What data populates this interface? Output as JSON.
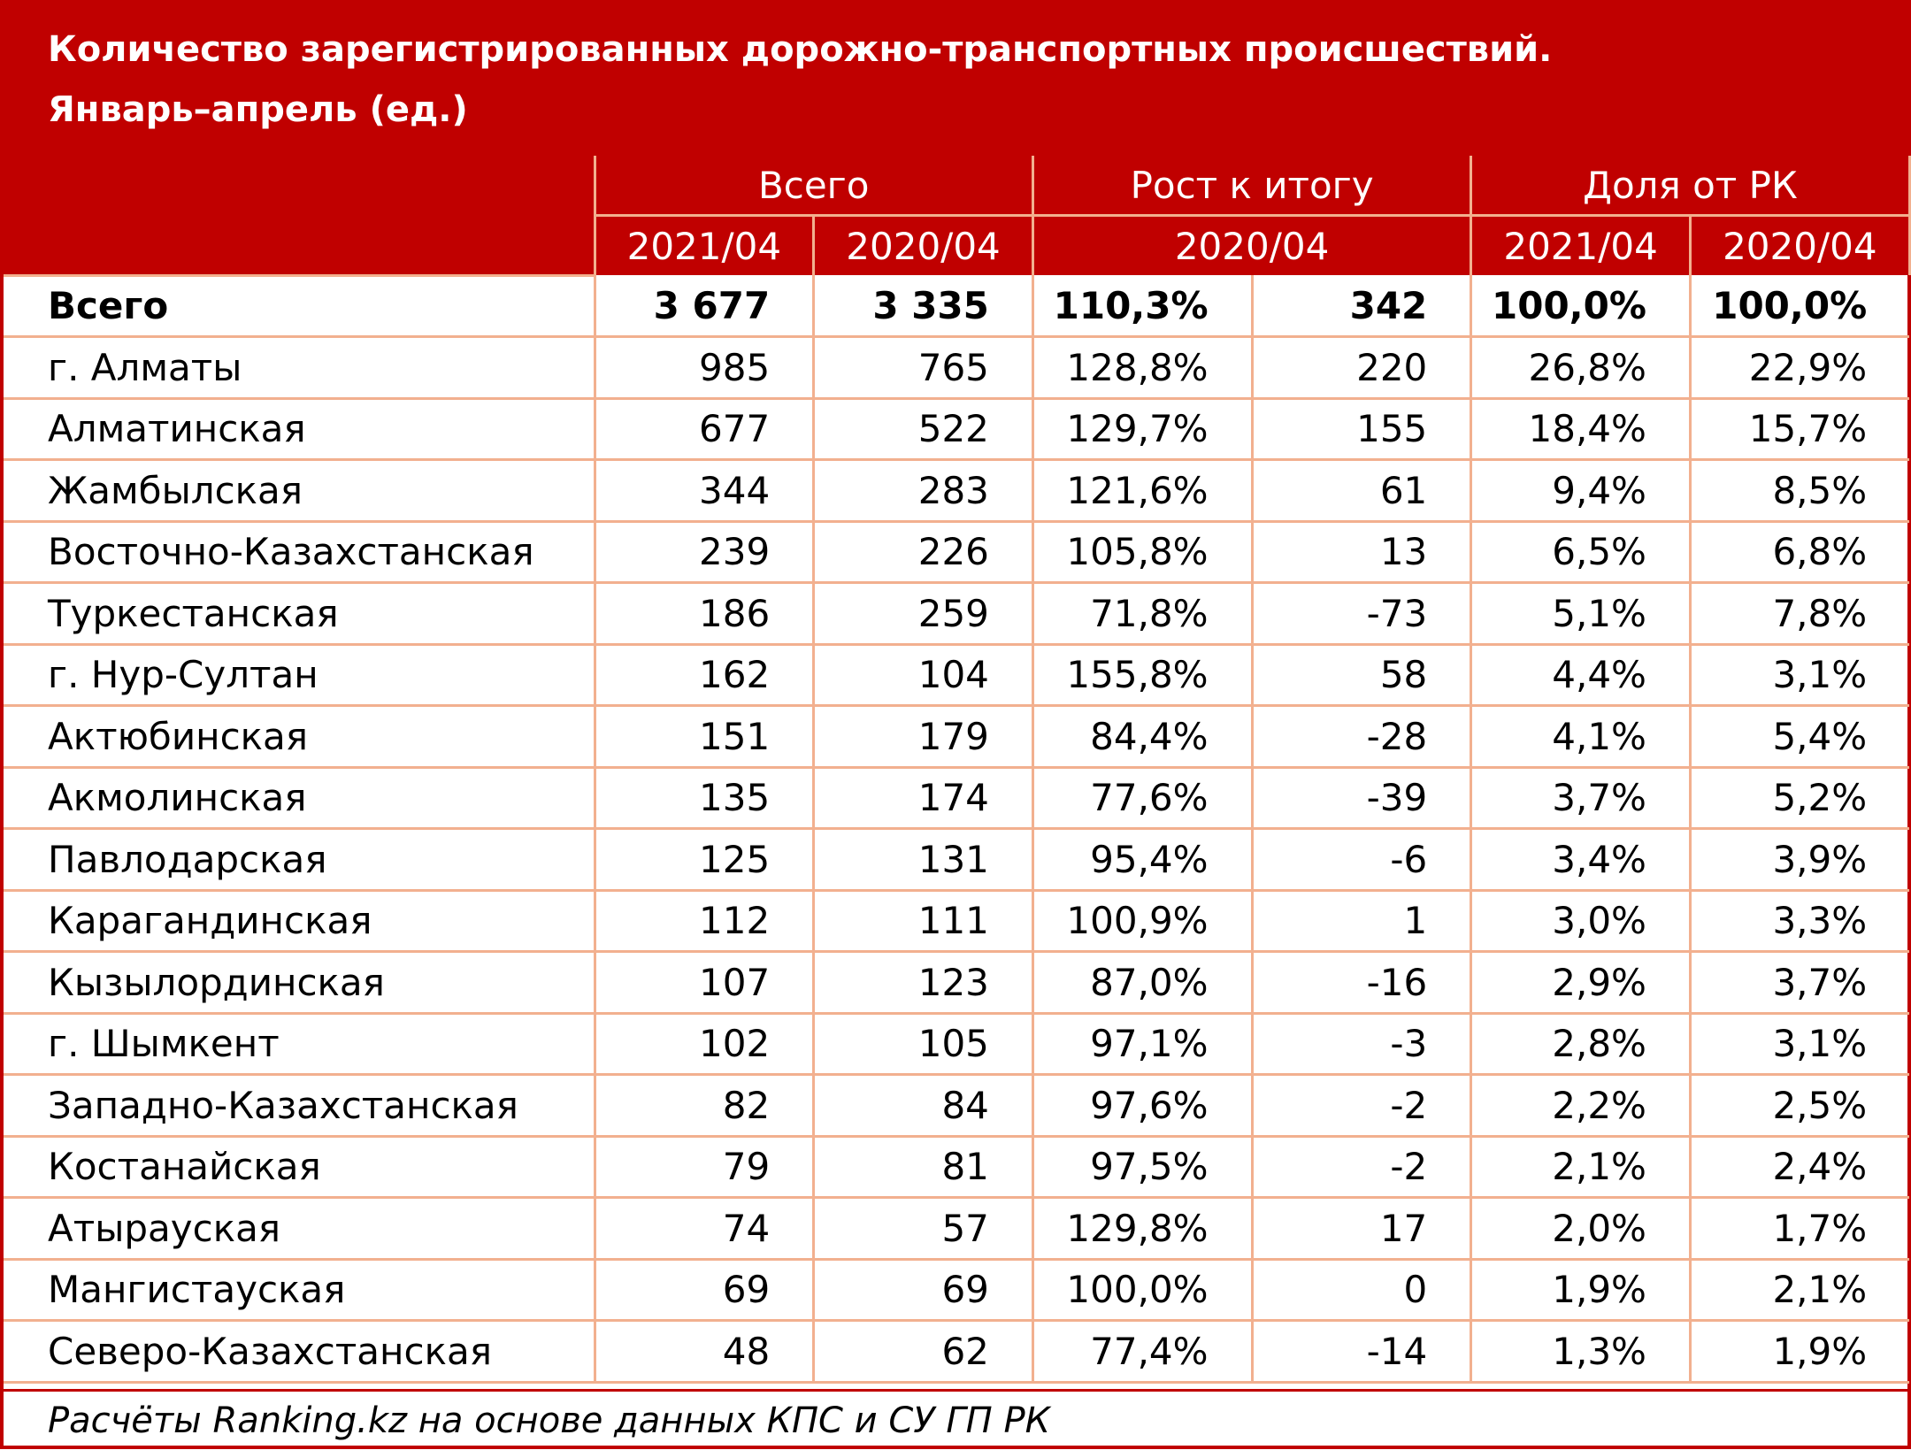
{
  "title": {
    "line1": "Количество зарегистрированных дорожно-транспортных происшествий.",
    "line2": "Январь–апрель (ед.)"
  },
  "header": {
    "group_total": "Всего",
    "group_growth": "Рост к итогу",
    "group_share": "Доля от РК",
    "total_2021": "2021/04",
    "total_2020": "2020/04",
    "growth_period": "2020/04",
    "share_2021": "2021/04",
    "share_2020": "2020/04"
  },
  "rows": [
    {
      "name": "Всего",
      "v2021": "3 677",
      "v2020": "3 335",
      "growth_pct": "110,3%",
      "growth_abs": "342",
      "share2021": "100,0%",
      "share2020": "100,0%"
    },
    {
      "name": "г. Алматы",
      "v2021": "985",
      "v2020": "765",
      "growth_pct": "128,8%",
      "growth_abs": "220",
      "share2021": "26,8%",
      "share2020": "22,9%"
    },
    {
      "name": "Алматинская",
      "v2021": "677",
      "v2020": "522",
      "growth_pct": "129,7%",
      "growth_abs": "155",
      "share2021": "18,4%",
      "share2020": "15,7%"
    },
    {
      "name": "Жамбылская",
      "v2021": "344",
      "v2020": "283",
      "growth_pct": "121,6%",
      "growth_abs": "61",
      "share2021": "9,4%",
      "share2020": "8,5%"
    },
    {
      "name": "Восточно-Казахстанская",
      "v2021": "239",
      "v2020": "226",
      "growth_pct": "105,8%",
      "growth_abs": "13",
      "share2021": "6,5%",
      "share2020": "6,8%"
    },
    {
      "name": "Туркестанская",
      "v2021": "186",
      "v2020": "259",
      "growth_pct": "71,8%",
      "growth_abs": "-73",
      "share2021": "5,1%",
      "share2020": "7,8%"
    },
    {
      "name": "г. Нур-Султан",
      "v2021": "162",
      "v2020": "104",
      "growth_pct": "155,8%",
      "growth_abs": "58",
      "share2021": "4,4%",
      "share2020": "3,1%"
    },
    {
      "name": "Актюбинская",
      "v2021": "151",
      "v2020": "179",
      "growth_pct": "84,4%",
      "growth_abs": "-28",
      "share2021": "4,1%",
      "share2020": "5,4%"
    },
    {
      "name": "Акмолинская",
      "v2021": "135",
      "v2020": "174",
      "growth_pct": "77,6%",
      "growth_abs": "-39",
      "share2021": "3,7%",
      "share2020": "5,2%"
    },
    {
      "name": "Павлодарская",
      "v2021": "125",
      "v2020": "131",
      "growth_pct": "95,4%",
      "growth_abs": "-6",
      "share2021": "3,4%",
      "share2020": "3,9%"
    },
    {
      "name": "Карагандинская",
      "v2021": "112",
      "v2020": "111",
      "growth_pct": "100,9%",
      "growth_abs": "1",
      "share2021": "3,0%",
      "share2020": "3,3%"
    },
    {
      "name": "Кызылординская",
      "v2021": "107",
      "v2020": "123",
      "growth_pct": "87,0%",
      "growth_abs": "-16",
      "share2021": "2,9%",
      "share2020": "3,7%"
    },
    {
      "name": "г. Шымкент",
      "v2021": "102",
      "v2020": "105",
      "growth_pct": "97,1%",
      "growth_abs": "-3",
      "share2021": "2,8%",
      "share2020": "3,1%"
    },
    {
      "name": "Западно-Казахстанская",
      "v2021": "82",
      "v2020": "84",
      "growth_pct": "97,6%",
      "growth_abs": "-2",
      "share2021": "2,2%",
      "share2020": "2,5%"
    },
    {
      "name": "Костанайская",
      "v2021": "79",
      "v2020": "81",
      "growth_pct": "97,5%",
      "growth_abs": "-2",
      "share2021": "2,1%",
      "share2020": "2,4%"
    },
    {
      "name": "Атырауская",
      "v2021": "74",
      "v2020": "57",
      "growth_pct": "129,8%",
      "growth_abs": "17",
      "share2021": "2,0%",
      "share2020": "1,7%"
    },
    {
      "name": "Мангистауская",
      "v2021": "69",
      "v2020": "69",
      "growth_pct": "100,0%",
      "growth_abs": "0",
      "share2021": "1,9%",
      "share2020": "2,1%"
    },
    {
      "name": "Северо-Казахстанская",
      "v2021": "48",
      "v2020": "62",
      "growth_pct": "77,4%",
      "growth_abs": "-14",
      "share2021": "1,3%",
      "share2020": "1,9%"
    }
  ],
  "footer": "Расчёты Ranking.kz на основе данных КПС и СУ ГП РК",
  "colors": {
    "header_bg": "#c00000",
    "grid_line": "#f2b08f"
  }
}
